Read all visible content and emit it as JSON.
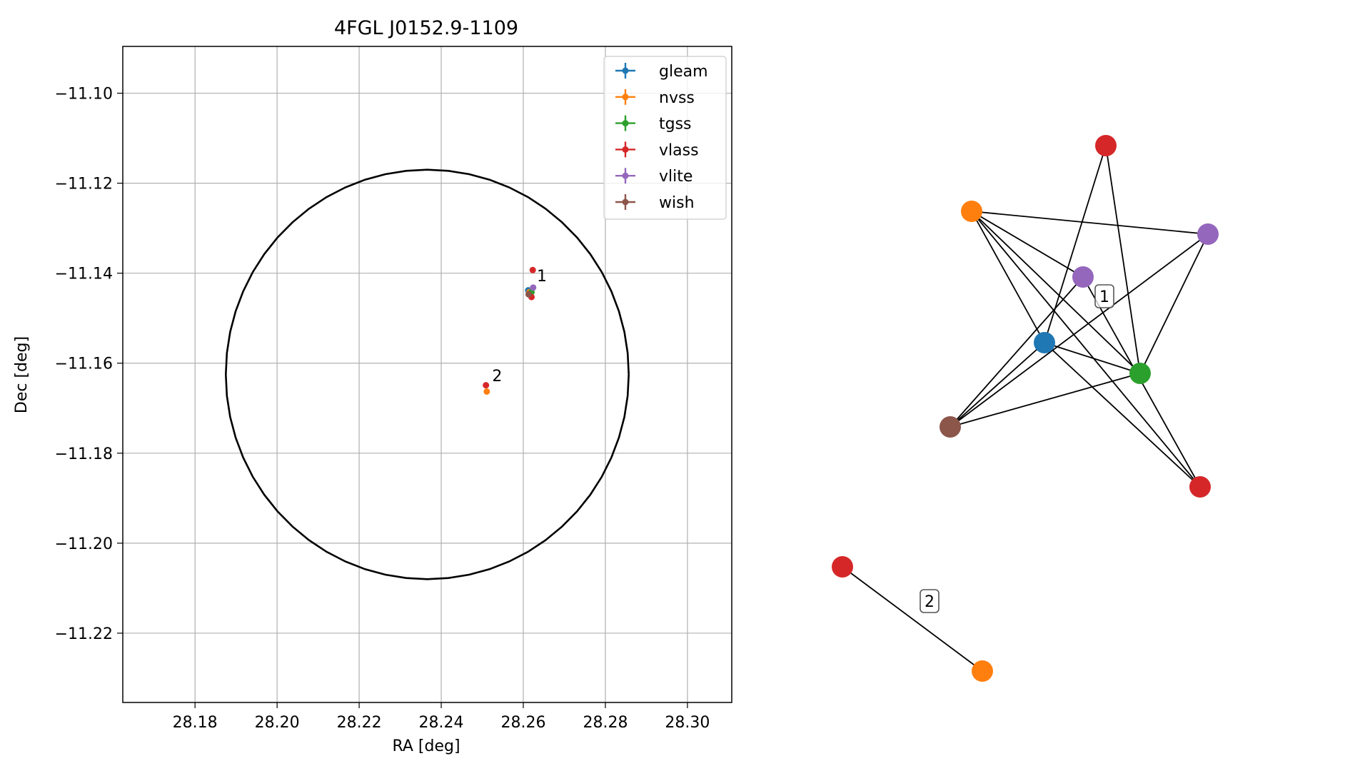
{
  "chart_data": [
    {
      "type": "scatter",
      "title": "4FGL J0152.9-1109",
      "xlabel": "RA [deg]",
      "ylabel": "Dec [deg]",
      "xlim": [
        28.1624,
        28.3108
      ],
      "ylim": [
        -11.2354,
        -11.0896
      ],
      "xticks": [
        28.18,
        28.2,
        28.22,
        28.24,
        28.26,
        28.28,
        28.3
      ],
      "xtick_labels": [
        "28.18",
        "28.20",
        "28.22",
        "28.24",
        "28.26",
        "28.28",
        "28.30"
      ],
      "yticks": [
        -11.1,
        -11.12,
        -11.14,
        -11.16,
        -11.18,
        -11.2,
        -11.22
      ],
      "ytick_labels": [
        "−11.10",
        "−11.12",
        "−11.14",
        "−11.16",
        "−11.18",
        "−11.20",
        "−11.22"
      ],
      "grid": true,
      "legend_position": "top-right",
      "circle": {
        "center": [
          28.2366,
          -11.1625
        ],
        "ra_radius": 0.0491,
        "dec_radius": 0.0455
      },
      "series": [
        {
          "name": "gleam",
          "color": "#1f77b4",
          "points": [
            {
              "x": 28.2612,
              "y": -11.1438
            }
          ]
        },
        {
          "name": "nvss",
          "color": "#ff7f0e",
          "points": [
            {
              "x": 28.2615,
              "y": -11.1442
            },
            {
              "x": 28.2511,
              "y": -11.1663
            }
          ]
        },
        {
          "name": "tgss",
          "color": "#2ca02c",
          "points": [
            {
              "x": 28.262,
              "y": -11.1442
            }
          ]
        },
        {
          "name": "vlass",
          "color": "#d62728",
          "points": [
            {
              "x": 28.2623,
              "y": -11.1393
            },
            {
              "x": 28.262,
              "y": -11.1453
            },
            {
              "x": 28.2509,
              "y": -11.1649
            }
          ]
        },
        {
          "name": "vlite",
          "color": "#9467bd",
          "points": [
            {
              "x": 28.2624,
              "y": -11.1432
            }
          ]
        },
        {
          "name": "wish",
          "color": "#8c564b",
          "points": [
            {
              "x": 28.2613,
              "y": -11.1447
            }
          ]
        }
      ],
      "annotations": [
        {
          "text": "1",
          "x": 28.2633,
          "y": -11.1405
        },
        {
          "text": "2",
          "x": 28.2524,
          "y": -11.1627
        }
      ]
    },
    {
      "type": "network",
      "nodes": [
        {
          "id": "vlass_a",
          "survey": "vlass",
          "color": "#d62728"
        },
        {
          "id": "nvss_a",
          "survey": "nvss",
          "color": "#ff7f0e"
        },
        {
          "id": "vlite_b",
          "survey": "vlite",
          "color": "#9467bd"
        },
        {
          "id": "vlite_a",
          "survey": "vlite",
          "color": "#9467bd"
        },
        {
          "id": "gleam",
          "survey": "gleam",
          "color": "#1f77b4"
        },
        {
          "id": "tgss",
          "survey": "tgss",
          "color": "#2ca02c"
        },
        {
          "id": "wish",
          "survey": "wish",
          "color": "#8c564b"
        },
        {
          "id": "vlass_b",
          "survey": "vlass",
          "color": "#d62728"
        },
        {
          "id": "vlass_c",
          "survey": "vlass",
          "color": "#d62728"
        },
        {
          "id": "nvss_b",
          "survey": "nvss",
          "color": "#ff7f0e"
        }
      ],
      "edges": [
        [
          "nvss_a",
          "vlite_b"
        ],
        [
          "nvss_a",
          "vlite_a"
        ],
        [
          "nvss_a",
          "tgss"
        ],
        [
          "nvss_a",
          "vlass_b"
        ],
        [
          "nvss_a",
          "gleam"
        ],
        [
          "vlass_a",
          "gleam"
        ],
        [
          "vlass_a",
          "tgss"
        ],
        [
          "vlite_b",
          "tgss"
        ],
        [
          "vlite_b",
          "wish"
        ],
        [
          "vlite_a",
          "wish"
        ],
        [
          "vlite_a",
          "vlass_b"
        ],
        [
          "gleam",
          "tgss"
        ],
        [
          "gleam",
          "wish"
        ],
        [
          "gleam",
          "vlass_b"
        ],
        [
          "wish",
          "tgss"
        ],
        [
          "vlass_c",
          "nvss_b"
        ]
      ],
      "labels": [
        {
          "text": "1"
        },
        {
          "text": "2"
        }
      ]
    }
  ]
}
